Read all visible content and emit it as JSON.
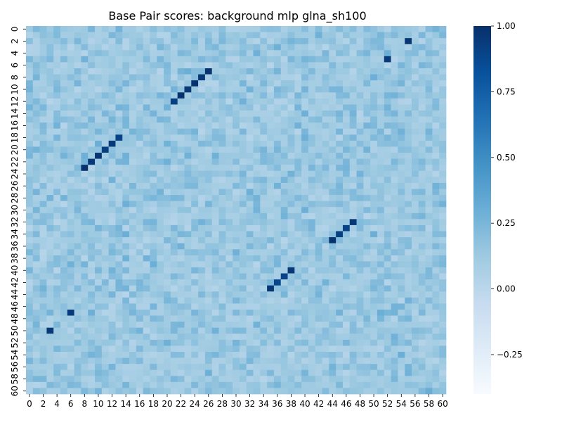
{
  "chart_data": {
    "type": "heatmap",
    "title": "Base Pair scores: background mlp glna_sh100",
    "xlabel": "",
    "ylabel": "",
    "n_rows": 61,
    "n_cols": 61,
    "x_tick_labels": [
      "0",
      "2",
      "4",
      "6",
      "8",
      "10",
      "12",
      "14",
      "16",
      "18",
      "20",
      "22",
      "24",
      "26",
      "28",
      "30",
      "32",
      "34",
      "36",
      "38",
      "40",
      "42",
      "44",
      "46",
      "48",
      "50",
      "52",
      "54",
      "56",
      "58",
      "60"
    ],
    "y_tick_labels": [
      "0",
      "2",
      "4",
      "6",
      "8",
      "10",
      "12",
      "14",
      "16",
      "18",
      "20",
      "22",
      "24",
      "26",
      "28",
      "30",
      "32",
      "34",
      "36",
      "38",
      "40",
      "42",
      "44",
      "46",
      "48",
      "50",
      "52",
      "54",
      "56",
      "58",
      "60"
    ],
    "colorbar": {
      "min": -0.4,
      "max": 1.0,
      "ticks": [
        1.0,
        0.75,
        0.5,
        0.25,
        0.0,
        -0.25
      ],
      "tick_labels": [
        "1.00",
        "0.75",
        "0.50",
        "0.25",
        "0.00",
        "−0.25"
      ],
      "colormap": "Blues"
    },
    "background_value_range": [
      -0.1,
      0.35
    ],
    "high_score_cells": [
      {
        "row": 2,
        "col": 55,
        "value": 0.97
      },
      {
        "row": 5,
        "col": 52,
        "value": 0.95
      },
      {
        "row": 7,
        "col": 26,
        "value": 0.98
      },
      {
        "row": 8,
        "col": 25,
        "value": 0.96
      },
      {
        "row": 9,
        "col": 24,
        "value": 0.99
      },
      {
        "row": 10,
        "col": 23,
        "value": 0.96
      },
      {
        "row": 11,
        "col": 22,
        "value": 0.99
      },
      {
        "row": 12,
        "col": 21,
        "value": 0.92
      },
      {
        "row": 18,
        "col": 13,
        "value": 0.9
      },
      {
        "row": 19,
        "col": 12,
        "value": 0.95
      },
      {
        "row": 20,
        "col": 11,
        "value": 0.92
      },
      {
        "row": 21,
        "col": 10,
        "value": 0.98
      },
      {
        "row": 22,
        "col": 9,
        "value": 0.95
      },
      {
        "row": 23,
        "col": 8,
        "value": 0.99
      },
      {
        "row": 32,
        "col": 47,
        "value": 0.96
      },
      {
        "row": 33,
        "col": 46,
        "value": 0.9
      },
      {
        "row": 34,
        "col": 45,
        "value": 0.92
      },
      {
        "row": 35,
        "col": 44,
        "value": 0.99
      },
      {
        "row": 40,
        "col": 38,
        "value": 0.96
      },
      {
        "row": 41,
        "col": 37,
        "value": 0.9
      },
      {
        "row": 42,
        "col": 36,
        "value": 0.88
      },
      {
        "row": 43,
        "col": 35,
        "value": 0.97
      },
      {
        "row": 47,
        "col": 6,
        "value": 0.95
      },
      {
        "row": 50,
        "col": 3,
        "value": 0.96
      }
    ]
  }
}
